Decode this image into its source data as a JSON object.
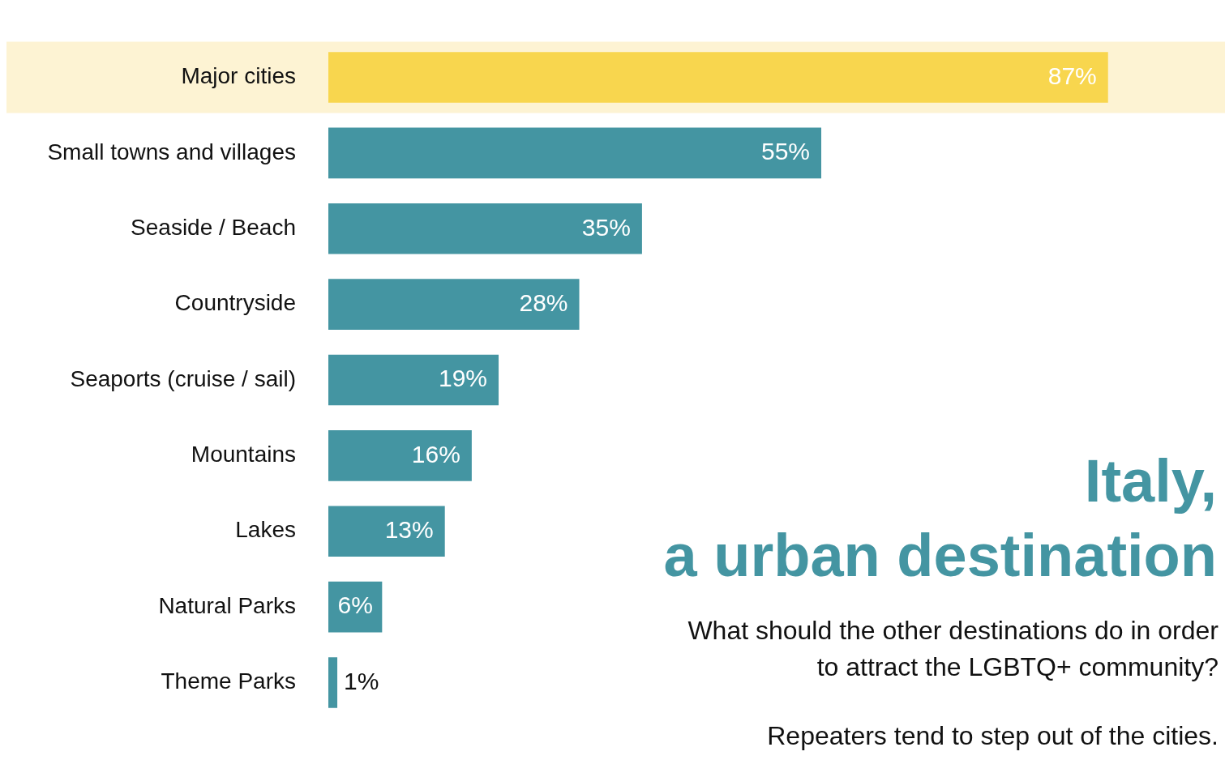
{
  "chart_data": {
    "type": "bar",
    "orientation": "horizontal",
    "title": "Italy,\na urban destination",
    "subtitle": "What should the other destinations do in order to attract the LGBTQ+ community?",
    "annotations": [
      "Repeaters tend to step out of the cities."
    ],
    "categories": [
      "Major cities",
      "Small towns and villages",
      "Seaside / Beach",
      "Countryside",
      "Seaports (cruise / sail)",
      "Mountains",
      "Lakes",
      "Natural Parks",
      "Theme Parks"
    ],
    "values": [
      87,
      55,
      35,
      28,
      19,
      16,
      13,
      6,
      1
    ],
    "colors": [
      "#f8d64e",
      "#4495a2",
      "#4495a2",
      "#4495a2",
      "#4495a2",
      "#4495a2",
      "#4495a2",
      "#4495a2",
      "#4495a2"
    ],
    "bands": [
      {
        "axis": "y",
        "from": "Major cities",
        "to": "Major cities",
        "color": "#fdf3d3"
      }
    ],
    "value_labels": [
      "87%",
      "55%",
      "35%",
      "28%",
      "19%",
      "16%",
      "13%",
      "6%",
      "1%"
    ],
    "legend": false
  }
}
